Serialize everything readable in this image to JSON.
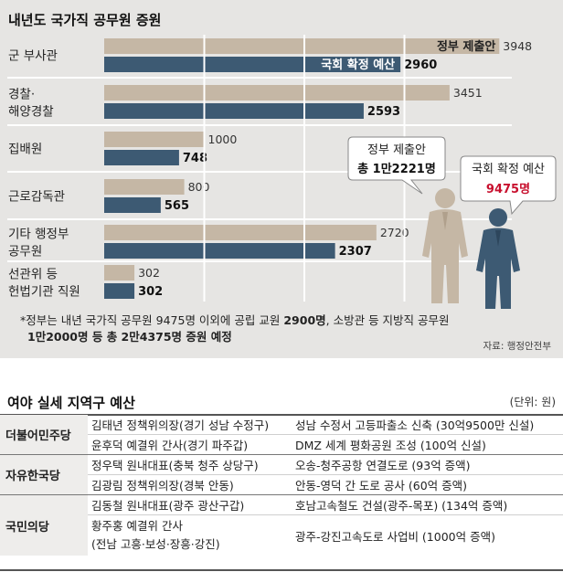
{
  "chart_data": {
    "type": "bar",
    "title": "내년도 국가직 공무원 증원",
    "categories": [
      [
        "군 부사관"
      ],
      [
        "경찰·",
        "해양경찰"
      ],
      [
        "집배원"
      ],
      [
        "근로감독관"
      ],
      [
        "기타 행정부",
        "공무원"
      ],
      [
        "선관위 등",
        "헌법기관 직원"
      ]
    ],
    "series": [
      {
        "name": "정부 제출안",
        "values": [
          3948,
          3451,
          1000,
          800,
          2720,
          302
        ]
      },
      {
        "name": "국회 확정 예산",
        "values": [
          2960,
          2593,
          748,
          565,
          2307,
          302
        ]
      }
    ],
    "xlim": [
      0,
      4000
    ],
    "grid": true,
    "callouts": [
      {
        "label": "정부 제출안",
        "total": "총 1만2221명"
      },
      {
        "label": "국회 확정 예산",
        "total": "9475명"
      }
    ],
    "footnote": [
      {
        "text": "*정부는 내년 국가직 공무원 9475명 이외에 공립 교원 ",
        "bold": false
      },
      {
        "text": "2900명",
        "bold": true
      },
      {
        "text": ", 소방관 등 지방직 공무원",
        "bold": false
      }
    ],
    "footnote2": [
      {
        "text": "1만2000명 등 총 2만4375명 증원 예정",
        "bold": true
      }
    ],
    "source": "자료: 행정안전부",
    "colors": {
      "government": "#c5b7a5",
      "assembly": "#3d5a73",
      "panel": "#e6e5e3",
      "accent_red": "#c8102e"
    }
  },
  "table": {
    "title": "여야 실세 지역구 예산",
    "unit": "(단위: 원)",
    "rows": [
      {
        "party": "더불어민주당",
        "person": [
          "김태년 정책위의장(경기 성남 수정구)"
        ],
        "project": "성남 수정서 고등파출소 신축 (30억9500만 신설)"
      },
      {
        "party": "",
        "person": [
          "윤후덕 예결위 간사(경기 파주갑)"
        ],
        "project": "DMZ 세계 평화공원 조성 (100억 신설)"
      },
      {
        "party": "자유한국당",
        "person": [
          "정우택 원내대표(충북 청주 상당구)"
        ],
        "project": "오송-청주공항 연결도로 (93억 증액)"
      },
      {
        "party": "",
        "person": [
          "김광림 정책위의장(경북 안동)"
        ],
        "project": "안동-영덕 간 도로 공사 (60억 증액)"
      },
      {
        "party": "국민의당",
        "person": [
          "김동철 원내대표(광주 광산구갑)"
        ],
        "project": "호남고속철도 건설(광주-목포) (134억 증액)"
      },
      {
        "party": "",
        "person": [
          "황주홍 예결위 간사",
          "(전남 고흥·보성·장흥·강진)"
        ],
        "project": "광주-강진고속도로 사업비 (1000억 증액)"
      }
    ]
  }
}
